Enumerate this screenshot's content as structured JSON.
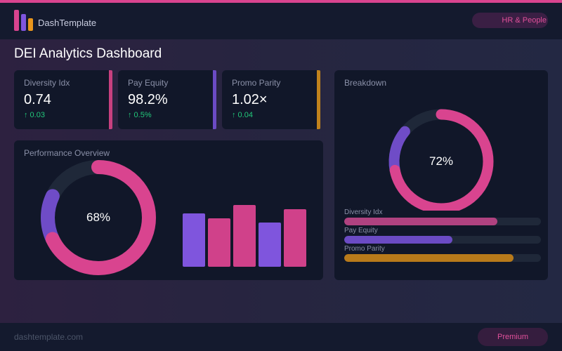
{
  "header": {
    "brand": "DashTemplate",
    "badge": "HR & People"
  },
  "page_title": "DEI Analytics Dashboard",
  "kpis": [
    {
      "label": "Diversity Idx",
      "value": "0.74",
      "delta": "↑ 0.03",
      "color": "#c8407f"
    },
    {
      "label": "Pay Equity",
      "value": "98.2%",
      "delta": "↑ 0.5%",
      "color": "#6b4bc4"
    },
    {
      "label": "Promo Parity",
      "value": "1.02×",
      "delta": "↑ 0.04",
      "color": "#c0821c"
    }
  ],
  "performance": {
    "title": "Performance Overview",
    "donut_percent": 68,
    "donut_label": "68%",
    "bar_values": [
      76,
      69,
      88,
      63,
      82
    ],
    "bar_colors": [
      "#7f55dd",
      "#d0418a",
      "#d0418a",
      "#7f55dd",
      "#d0418a"
    ]
  },
  "breakdown": {
    "title": "Breakdown",
    "donut_percent": 72,
    "donut_label": "72%",
    "bars": [
      {
        "label": "Diversity Idx",
        "percent": 78,
        "color": "#b04280"
      },
      {
        "label": "Pay Equity",
        "percent": 55,
        "color": "#6b4bc4"
      },
      {
        "label": "Promo Parity",
        "percent": 86,
        "color": "#b87a1a"
      }
    ]
  },
  "footer": {
    "site": "dashtemplate.com",
    "button": "Premium"
  },
  "colors": {
    "pink": "#d9448f",
    "purple": "#6f4cc7",
    "track": "#1f2839"
  }
}
